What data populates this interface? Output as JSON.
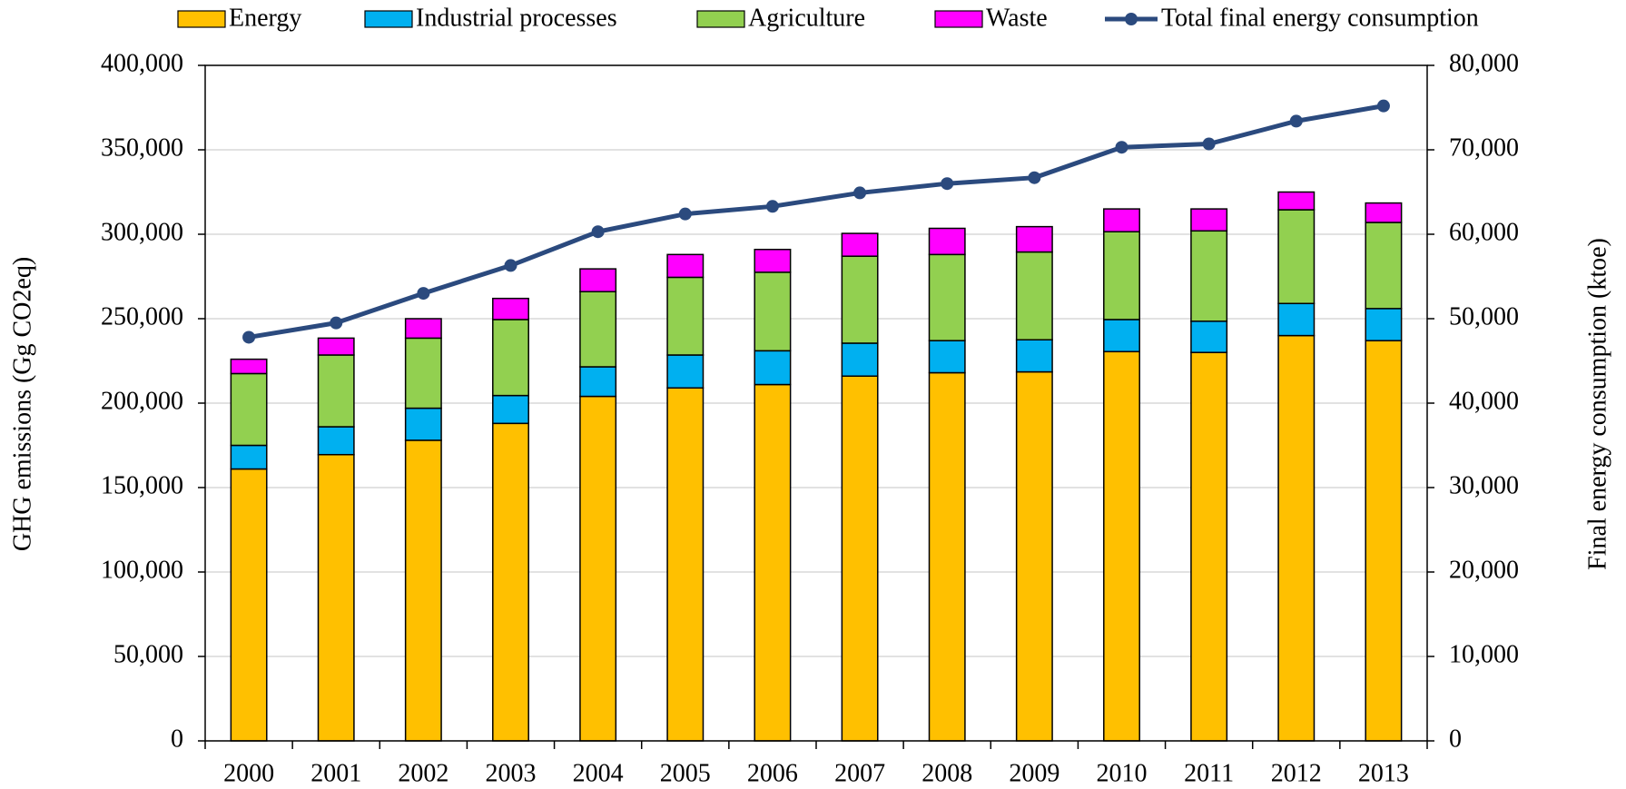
{
  "chart_data": {
    "type": "bar",
    "stacked": true,
    "y_label": "GHG emissions (Gg CO2eq)",
    "y2_label": "Final energy consumption (ktoe)",
    "categories": [
      "2000",
      "2001",
      "2002",
      "2003",
      "2004",
      "2005",
      "2006",
      "2007",
      "2008",
      "2009",
      "2010",
      "2011",
      "2012",
      "2013"
    ],
    "series": [
      {
        "name": "Energy",
        "color": "#ffc000",
        "values": [
          161000,
          169500,
          178000,
          188000,
          204000,
          209000,
          211000,
          216000,
          218000,
          218500,
          230500,
          230000,
          240000,
          237000
        ]
      },
      {
        "name": "Industrial processes",
        "color": "#00b0f0",
        "values": [
          14000,
          16500,
          19000,
          16500,
          17500,
          19500,
          20000,
          19500,
          19000,
          19000,
          19000,
          18500,
          19000,
          19000
        ]
      },
      {
        "name": "Agriculture",
        "color": "#92d050",
        "values": [
          42500,
          42500,
          41500,
          45000,
          44500,
          46000,
          46500,
          51500,
          51000,
          52000,
          52000,
          53500,
          55500,
          51000
        ]
      },
      {
        "name": "Waste",
        "color": "#ff00ff",
        "values": [
          8500,
          10000,
          11500,
          12500,
          13500,
          13500,
          13500,
          13500,
          15500,
          15000,
          13500,
          13000,
          10500,
          11500
        ]
      },
      {
        "name": "Total final energy consumption",
        "type": "line",
        "axis": "y2",
        "color": "#2b4a7e",
        "values": [
          47800,
          49500,
          53000,
          56300,
          60300,
          62400,
          63300,
          64900,
          66000,
          66700,
          70300,
          70700,
          73400,
          75200
        ]
      }
    ],
    "ylim": [
      0,
      400000
    ],
    "yticks": [
      0,
      {
        "value": 50000,
        "label": "50,000"
      },
      {
        "value": 100000,
        "label": "100,000"
      },
      {
        "value": 150000,
        "label": "150,000"
      },
      {
        "value": 200000,
        "label": "200,000"
      },
      {
        "value": 250000,
        "label": "250,000"
      },
      {
        "value": 300000,
        "label": "300,000"
      },
      {
        "value": 350000,
        "label": "350,000"
      },
      {
        "value": 400000,
        "label": "400,000"
      }
    ],
    "y2lim": [
      0,
      80000
    ],
    "y2ticks": [
      0,
      {
        "value": 10000,
        "label": "10,000"
      },
      {
        "value": 20000,
        "label": "20,000"
      },
      {
        "value": 30000,
        "label": "30,000"
      },
      {
        "value": 40000,
        "label": "40,000"
      },
      {
        "value": 50000,
        "label": "50,000"
      },
      {
        "value": 60000,
        "label": "60,000"
      },
      {
        "value": 70000,
        "label": "70,000"
      },
      {
        "value": 80000,
        "label": "80,000"
      }
    ],
    "grid": true,
    "legend": "top"
  }
}
